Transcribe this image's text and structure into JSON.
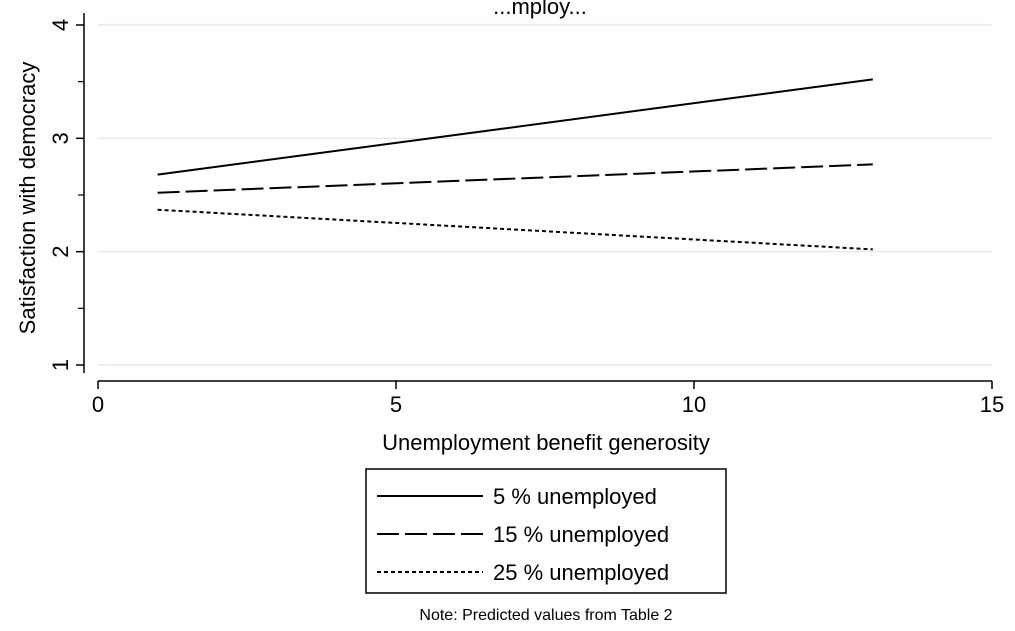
{
  "chart_data": {
    "type": "line",
    "title": "...mploy...",
    "xlabel": "Unemployment benefit generosity",
    "ylabel": "Satisfaction with democracy",
    "xlim": [
      0,
      15
    ],
    "ylim": [
      1,
      4
    ],
    "xticks": [
      "0",
      "5",
      "10",
      "15"
    ],
    "yticks": [
      "1",
      "2",
      "3",
      "4"
    ],
    "grid": "horizontal",
    "x": [
      1,
      13
    ],
    "series": [
      {
        "name": "5 % unemployed",
        "values": [
          2.68,
          3.52
        ],
        "style": "solid"
      },
      {
        "name": "15 % unemployed",
        "values": [
          2.52,
          2.77
        ],
        "style": "longdash"
      },
      {
        "name": "25 % unemployed",
        "values": [
          2.37,
          2.02
        ],
        "style": "shortdash"
      }
    ],
    "legend_position": "bottom-center",
    "note": "Note: Predicted values from Table 2",
    "colors": {
      "line": "#000000",
      "grid": "#dbe8ee",
      "background": "#ffffff"
    }
  }
}
